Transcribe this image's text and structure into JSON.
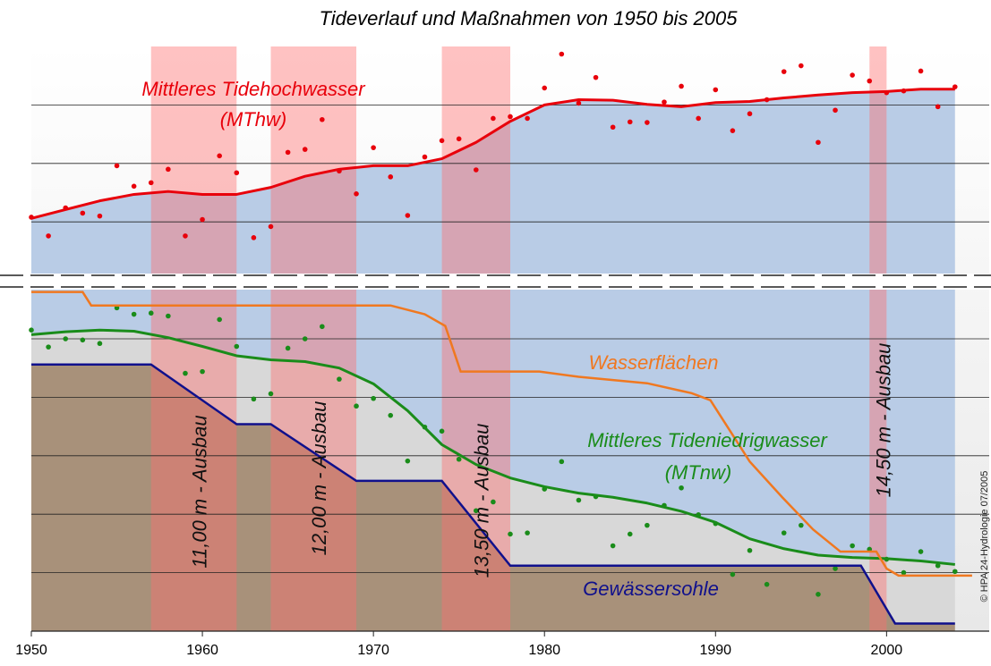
{
  "chart_data": {
    "type": "line",
    "title": "Tideverlauf und Maßnahmen von 1950 bis 2005",
    "credit": "© HPA 24-Hydrologie 07/2005",
    "xlim": [
      1950,
      2006
    ],
    "xticks": [
      1950,
      1960,
      1970,
      1980,
      1990,
      2000
    ],
    "ylim": [
      0,
      100
    ],
    "yticks": [
      10,
      20,
      30,
      40,
      50,
      70,
      80,
      90
    ],
    "grid": true,
    "x": [
      1950,
      1951,
      1952,
      1953,
      1954,
      1955,
      1956,
      1957,
      1958,
      1959,
      1960,
      1961,
      1962,
      1963,
      1964,
      1965,
      1966,
      1967,
      1968,
      1969,
      1970,
      1971,
      1972,
      1973,
      1974,
      1975,
      1976,
      1977,
      1978,
      1979,
      1980,
      1981,
      1982,
      1983,
      1984,
      1985,
      1986,
      1987,
      1988,
      1989,
      1990,
      1991,
      1992,
      1993,
      1994,
      1995,
      1996,
      1997,
      1998,
      1999,
      2000,
      2001,
      2002,
      2003,
      2004
    ],
    "trend_x": [
      1950,
      1952,
      1954,
      1956,
      1958,
      1960,
      1962,
      1964,
      1966,
      1968,
      1970,
      1972,
      1974,
      1976,
      1978,
      1980,
      1982,
      1984,
      1986,
      1988,
      1990,
      1992,
      1994,
      1996,
      1998,
      2000,
      2002,
      2004
    ],
    "series": [
      {
        "name": "Mittleres Tidehochwasser",
        "abbr": "(MThw)",
        "color": "#e8000b",
        "values": [
          70.8,
          67.6,
          72.4,
          71.5,
          71.0,
          79.6,
          76.1,
          76.7,
          79.0,
          67.6,
          70.4,
          81.3,
          78.4,
          67.3,
          69.2,
          81.9,
          82.4,
          87.5,
          78.7,
          74.8,
          82.7,
          77.7,
          71.1,
          81.1,
          83.9,
          84.2,
          78.9,
          87.7,
          88.0,
          87.7,
          92.9,
          98.7,
          90.3,
          94.7,
          86.2,
          87.1,
          87.0,
          90.5,
          93.2,
          87.7,
          92.6,
          85.6,
          88.5,
          90.9,
          95.7,
          96.7,
          83.6,
          89.1,
          95.1,
          94.1,
          92.1,
          92.4,
          95.8,
          89.7,
          93.1
        ],
        "trend": [
          70.6,
          72.1,
          73.6,
          74.7,
          75.2,
          74.7,
          74.7,
          75.9,
          77.8,
          79.0,
          79.6,
          79.6,
          80.8,
          83.6,
          87.2,
          90.0,
          90.9,
          90.8,
          90.1,
          89.7,
          90.4,
          90.6,
          91.2,
          91.7,
          92.1,
          92.3,
          92.7,
          92.7
        ]
      },
      {
        "name": "Mittleres Tideniedrigwasser",
        "abbr": "(MTnw)",
        "color": "#1a8c1a",
        "values": [
          51.5,
          48.6,
          50.0,
          49.8,
          49.2,
          55.3,
          54.2,
          54.4,
          53.9,
          44.1,
          44.4,
          53.3,
          48.7,
          39.7,
          40.6,
          48.4,
          50.0,
          52.1,
          43.1,
          38.5,
          39.8,
          36.9,
          29.1,
          34.9,
          34.2,
          29.4,
          20.6,
          22.1,
          16.6,
          16.8,
          24.3,
          29.0,
          22.4,
          23.0,
          14.6,
          16.6,
          18.1,
          21.5,
          24.5,
          19.9,
          18.4,
          9.7,
          13.8,
          8.0,
          16.8,
          18.1,
          6.3,
          10.7,
          14.6,
          14.0,
          12.3,
          10.0,
          13.6,
          11.2,
          10.2
        ],
        "trend": [
          50.7,
          51.2,
          51.5,
          51.3,
          50.2,
          48.7,
          47.1,
          46.4,
          46.1,
          45.0,
          42.3,
          37.7,
          31.9,
          28.5,
          26.2,
          24.7,
          23.6,
          22.9,
          21.9,
          20.5,
          18.6,
          15.8,
          14.1,
          13.0,
          12.6,
          12.4,
          12.0,
          11.4
        ]
      }
    ],
    "steps": [
      {
        "name": "Wasserflächen",
        "color": "#f07820",
        "x": [
          1950,
          1953,
          1953.5,
          1971,
          1973,
          1974.2,
          1975.1,
          1979.7,
          1982,
          1986,
          1988.6,
          1989.7,
          1992,
          1993.9,
          1995.7,
          1997.3,
          1999.4,
          2000,
          2000.7,
          2005
        ],
        "values": [
          58.0,
          58.0,
          55.7,
          55.7,
          54.2,
          52.2,
          44.4,
          44.4,
          43.5,
          42.4,
          40.7,
          39.5,
          29.0,
          22.9,
          17.4,
          13.6,
          13.6,
          10.7,
          9.5,
          9.5
        ]
      },
      {
        "name": "Gewässersohle",
        "color": "#10108c",
        "x": [
          1950,
          1957,
          1962,
          1964,
          1969,
          1974,
          1978,
          1998.5,
          2000.5,
          2004
        ],
        "values": [
          45.6,
          45.6,
          35.4,
          35.4,
          25.7,
          25.7,
          11.2,
          11.2,
          1.3,
          1.3
        ]
      }
    ],
    "ausbau": [
      {
        "start": 1957,
        "end": 1962,
        "label": "11,00 m - Ausbau"
      },
      {
        "start": 1964,
        "end": 1969,
        "label": "12,00 m - Ausbau"
      },
      {
        "start": 1974,
        "end": 1978,
        "label": "13,50 m - Ausbau"
      },
      {
        "start": 1999,
        "end": 2000,
        "label": "14,50 m - Ausbau"
      }
    ]
  }
}
